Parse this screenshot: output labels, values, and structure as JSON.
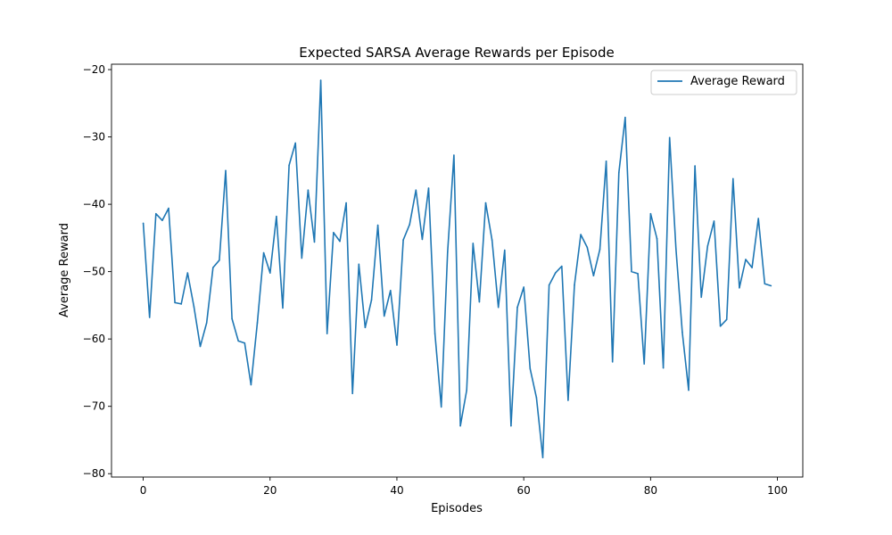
{
  "chart_data": {
    "type": "line",
    "title": "Expected SARSA Average Rewards per Episode",
    "xlabel": "Episodes",
    "ylabel": "Average Reward",
    "xlim": [
      -5,
      104
    ],
    "ylim": [
      -80.5,
      -19.2
    ],
    "xticks": [
      0,
      20,
      40,
      60,
      80,
      100
    ],
    "yticks": [
      -80,
      -70,
      -60,
      -50,
      -40,
      -30,
      -20
    ],
    "grid": false,
    "legend_position": "top-right",
    "series": [
      {
        "name": "Average Reward",
        "color": "#1f77b4",
        "x": [
          0,
          1,
          2,
          3,
          4,
          5,
          6,
          7,
          8,
          9,
          10,
          11,
          12,
          13,
          14,
          15,
          16,
          17,
          18,
          19,
          20,
          21,
          22,
          23,
          24,
          25,
          26,
          27,
          28,
          29,
          30,
          31,
          32,
          33,
          34,
          35,
          36,
          37,
          38,
          39,
          40,
          41,
          42,
          43,
          44,
          45,
          46,
          47,
          48,
          49,
          50,
          51,
          52,
          53,
          54,
          55,
          56,
          57,
          58,
          59,
          60,
          61,
          62,
          63,
          64,
          65,
          66,
          67,
          68,
          69,
          70,
          71,
          72,
          73,
          74,
          75,
          76,
          77,
          78,
          79,
          80,
          81,
          82,
          83,
          84,
          85,
          86,
          87,
          88,
          89,
          90,
          91,
          92,
          93,
          94,
          95,
          96,
          97,
          98,
          99
        ],
        "values": [
          -42.8,
          -56.8,
          -41.4,
          -42.4,
          -40.6,
          -54.6,
          -54.8,
          -50.2,
          -55.2,
          -61.1,
          -57.6,
          -49.4,
          -48.3,
          -35.0,
          -57.0,
          -60.3,
          -60.6,
          -66.8,
          -57.6,
          -47.2,
          -50.2,
          -41.8,
          -55.4,
          -34.2,
          -30.9,
          -48.0,
          -37.9,
          -45.6,
          -21.6,
          -59.2,
          -44.2,
          -45.5,
          -39.8,
          -68.1,
          -48.9,
          -58.3,
          -54.2,
          -43.1,
          -56.6,
          -52.8,
          -60.9,
          -45.3,
          -43.0,
          -37.9,
          -45.2,
          -37.6,
          -59.2,
          -70.1,
          -47.1,
          -32.7,
          -72.9,
          -67.6,
          -45.8,
          -54.5,
          -39.8,
          -45.3,
          -55.3,
          -46.8,
          -72.9,
          -55.3,
          -52.3,
          -64.4,
          -68.7,
          -77.6,
          -52.0,
          -50.2,
          -49.2,
          -69.1,
          -52.0,
          -44.5,
          -46.4,
          -50.6,
          -46.7,
          -33.6,
          -63.4,
          -35.3,
          -27.1,
          -50.0,
          -50.3,
          -63.7,
          -41.4,
          -45.1,
          -64.3,
          -30.1,
          -46.6,
          -59.0,
          -67.6,
          -34.3,
          -53.8,
          -46.2,
          -42.5,
          -58.1,
          -57.1,
          -36.2,
          -52.4,
          -48.2,
          -49.4,
          -42.1,
          -51.8,
          -52.1
        ]
      }
    ]
  }
}
